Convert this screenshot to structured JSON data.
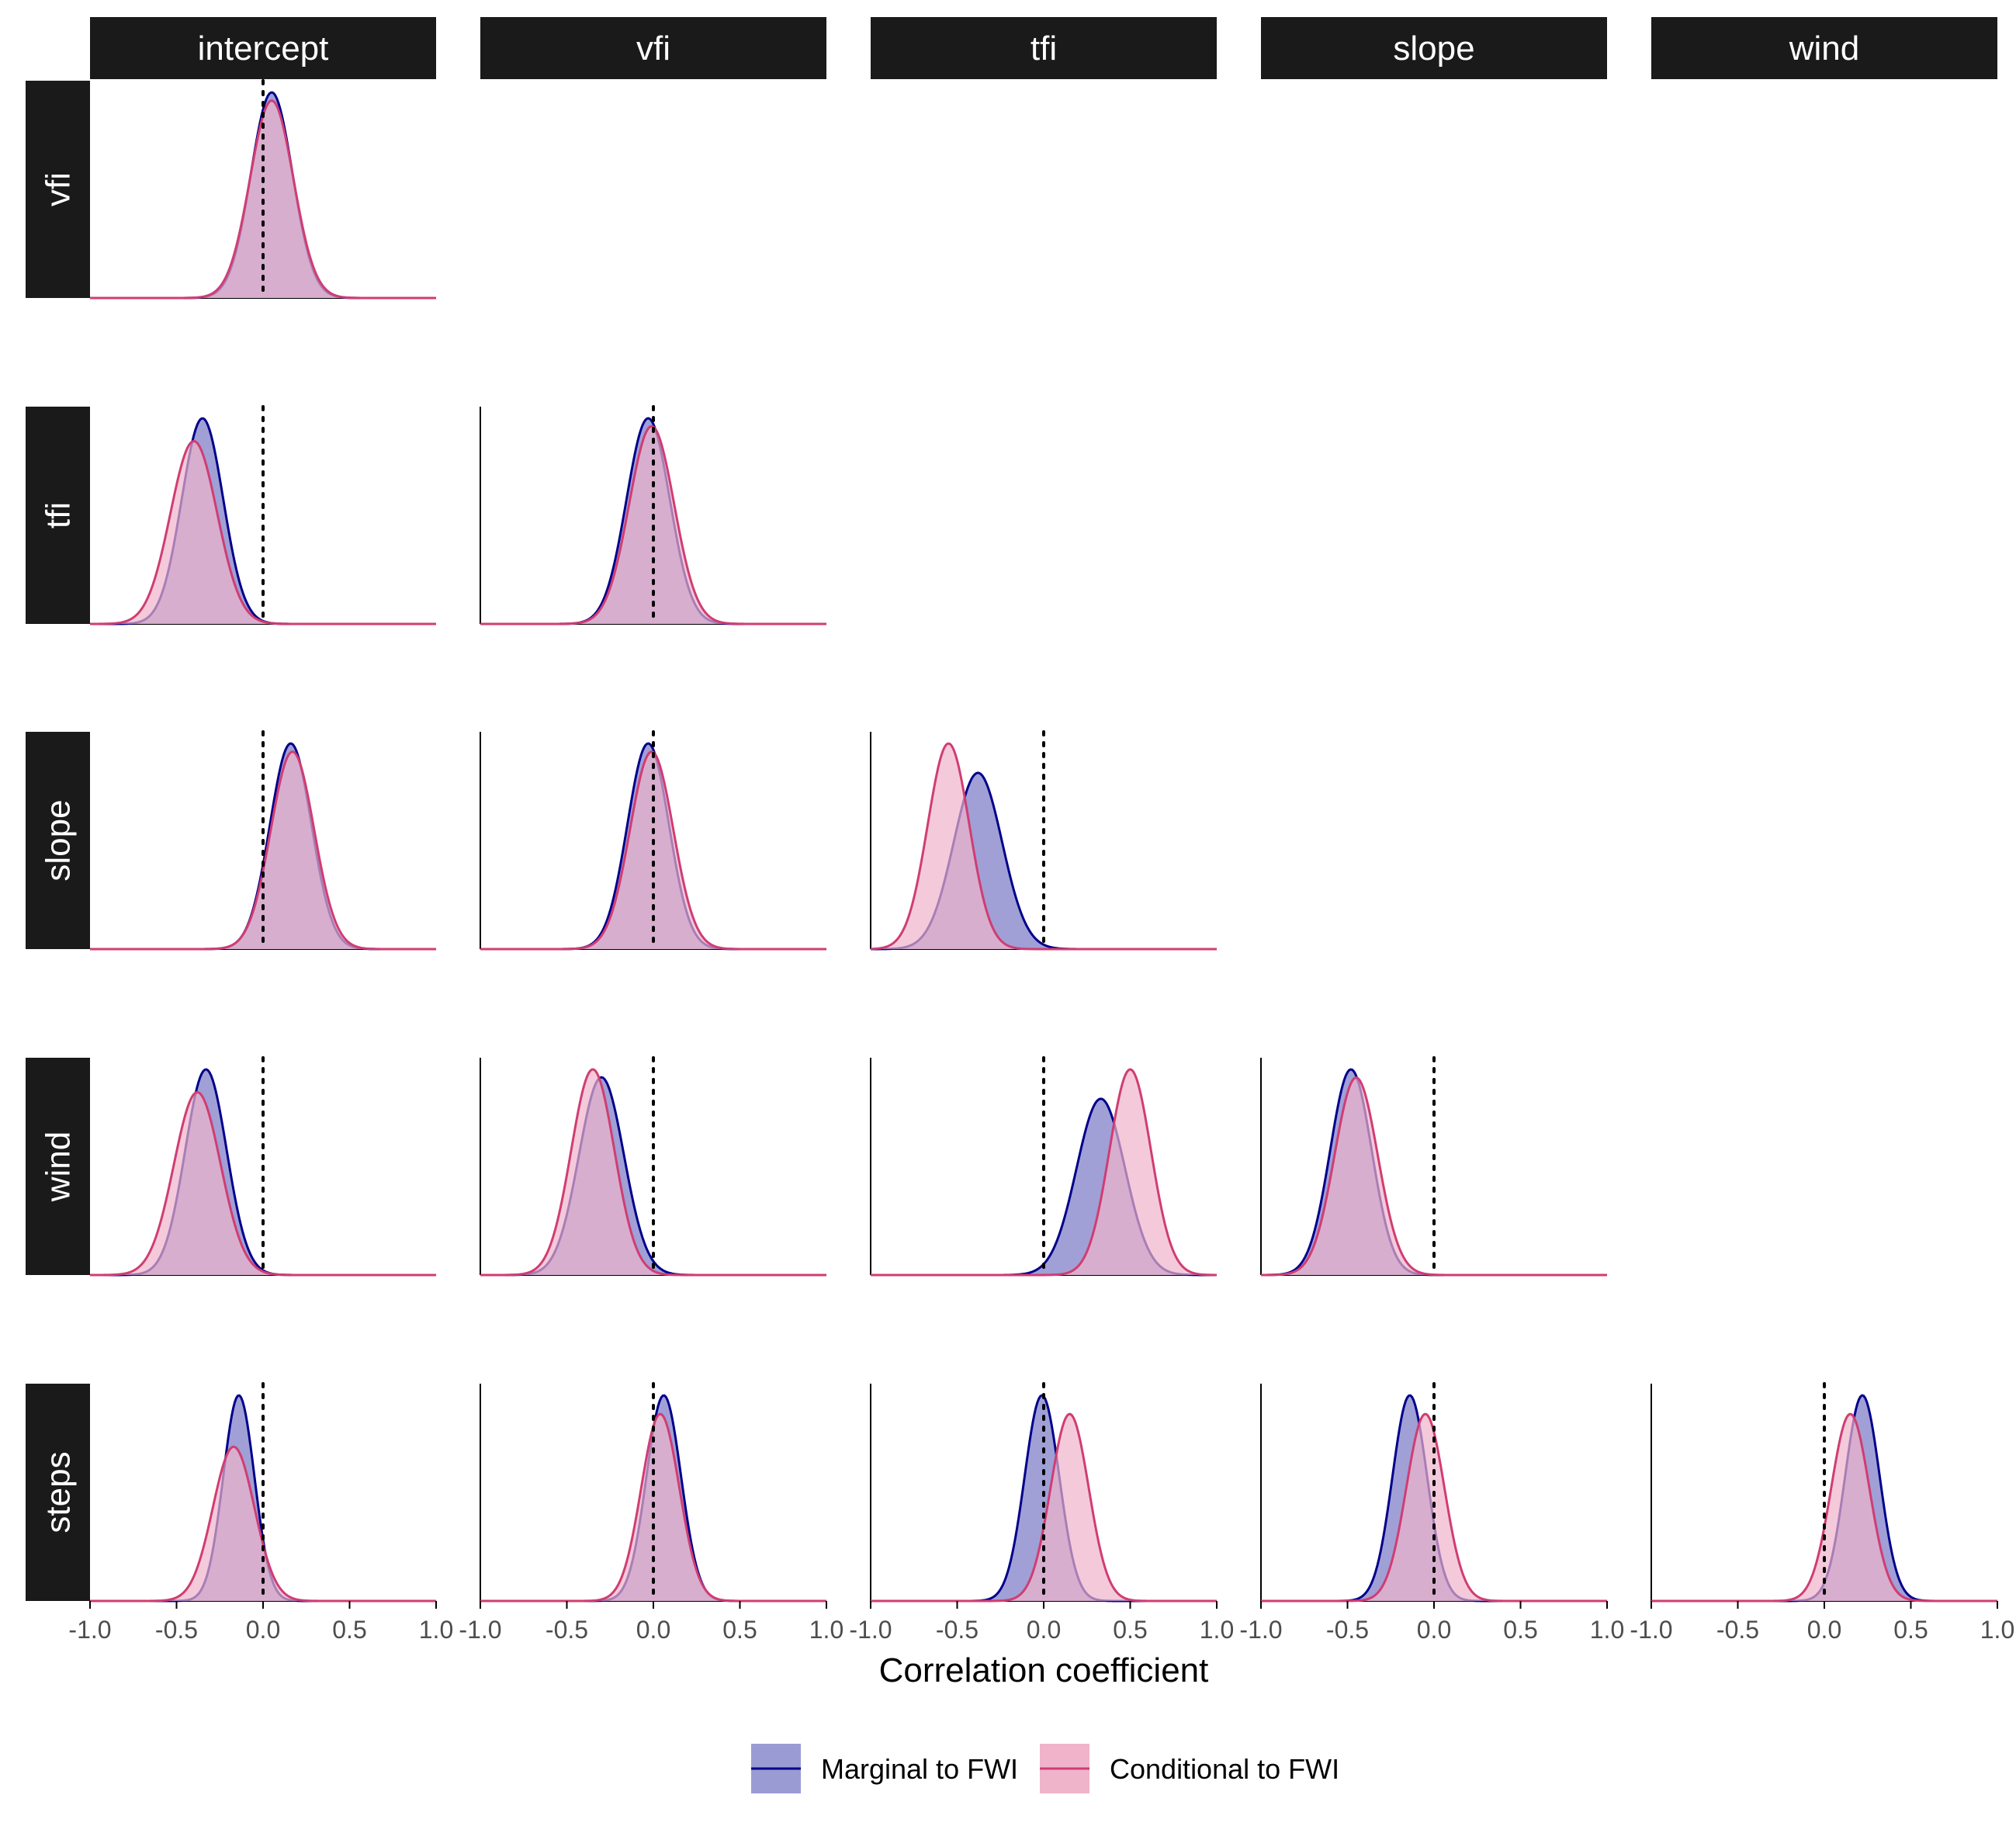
{
  "chart_data": {
    "type": "area",
    "xlabel": "Correlation coefficient",
    "xlim": [
      -1.0,
      1.0
    ],
    "x_ticks": [
      "-1.0",
      "-0.5",
      "0.0",
      "0.5",
      "1.0"
    ],
    "reference_line_x": 0.0,
    "column_facets": [
      "intercept",
      "vfi",
      "tfi",
      "slope",
      "wind"
    ],
    "row_facets": [
      "vfi",
      "tfi",
      "slope",
      "wind",
      "steps"
    ],
    "legend": {
      "position": "bottom",
      "entries": [
        {
          "label": "Marginal to FWI",
          "line_color": "#00008b",
          "fill_color": "#9b9bd4"
        },
        {
          "label": "Conditional to FWI",
          "line_color": "#d03d72",
          "fill_color": "#efb4ca"
        }
      ]
    },
    "panels": [
      {
        "row": "vfi",
        "col": "intercept",
        "marginal": {
          "mean": 0.05,
          "sd": 0.12
        },
        "conditional": {
          "mean": 0.05,
          "sd": 0.125
        }
      },
      {
        "row": "tfi",
        "col": "intercept",
        "marginal": {
          "mean": -0.35,
          "sd": 0.12
        },
        "conditional": {
          "mean": -0.4,
          "sd": 0.135
        }
      },
      {
        "row": "tfi",
        "col": "vfi",
        "marginal": {
          "mean": -0.03,
          "sd": 0.125
        },
        "conditional": {
          "mean": -0.01,
          "sd": 0.13
        }
      },
      {
        "row": "slope",
        "col": "intercept",
        "marginal": {
          "mean": 0.16,
          "sd": 0.12
        },
        "conditional": {
          "mean": 0.17,
          "sd": 0.125
        }
      },
      {
        "row": "slope",
        "col": "vfi",
        "marginal": {
          "mean": -0.03,
          "sd": 0.12
        },
        "conditional": {
          "mean": -0.01,
          "sd": 0.125
        }
      },
      {
        "row": "slope",
        "col": "tfi",
        "marginal": {
          "mean": -0.38,
          "sd": 0.14
        },
        "conditional": {
          "mean": -0.55,
          "sd": 0.12
        }
      },
      {
        "row": "wind",
        "col": "intercept",
        "marginal": {
          "mean": -0.33,
          "sd": 0.12
        },
        "conditional": {
          "mean": -0.38,
          "sd": 0.135
        }
      },
      {
        "row": "wind",
        "col": "vfi",
        "marginal": {
          "mean": -0.3,
          "sd": 0.13
        },
        "conditional": {
          "mean": -0.35,
          "sd": 0.125
        }
      },
      {
        "row": "wind",
        "col": "tfi",
        "marginal": {
          "mean": 0.33,
          "sd": 0.14
        },
        "conditional": {
          "mean": 0.5,
          "sd": 0.12
        }
      },
      {
        "row": "wind",
        "col": "slope",
        "marginal": {
          "mean": -0.48,
          "sd": 0.12
        },
        "conditional": {
          "mean": -0.45,
          "sd": 0.125
        }
      },
      {
        "row": "steps",
        "col": "intercept",
        "marginal": {
          "mean": -0.14,
          "sd": 0.09
        },
        "conditional": {
          "mean": -0.17,
          "sd": 0.12
        }
      },
      {
        "row": "steps",
        "col": "vfi",
        "marginal": {
          "mean": 0.06,
          "sd": 0.1
        },
        "conditional": {
          "mean": 0.04,
          "sd": 0.11
        }
      },
      {
        "row": "steps",
        "col": "tfi",
        "marginal": {
          "mean": -0.01,
          "sd": 0.1
        },
        "conditional": {
          "mean": 0.15,
          "sd": 0.11
        }
      },
      {
        "row": "steps",
        "col": "slope",
        "marginal": {
          "mean": -0.14,
          "sd": 0.1
        },
        "conditional": {
          "mean": -0.05,
          "sd": 0.11
        }
      },
      {
        "row": "steps",
        "col": "wind",
        "marginal": {
          "mean": 0.22,
          "sd": 0.1
        },
        "conditional": {
          "mean": 0.15,
          "sd": 0.11
        }
      }
    ]
  }
}
